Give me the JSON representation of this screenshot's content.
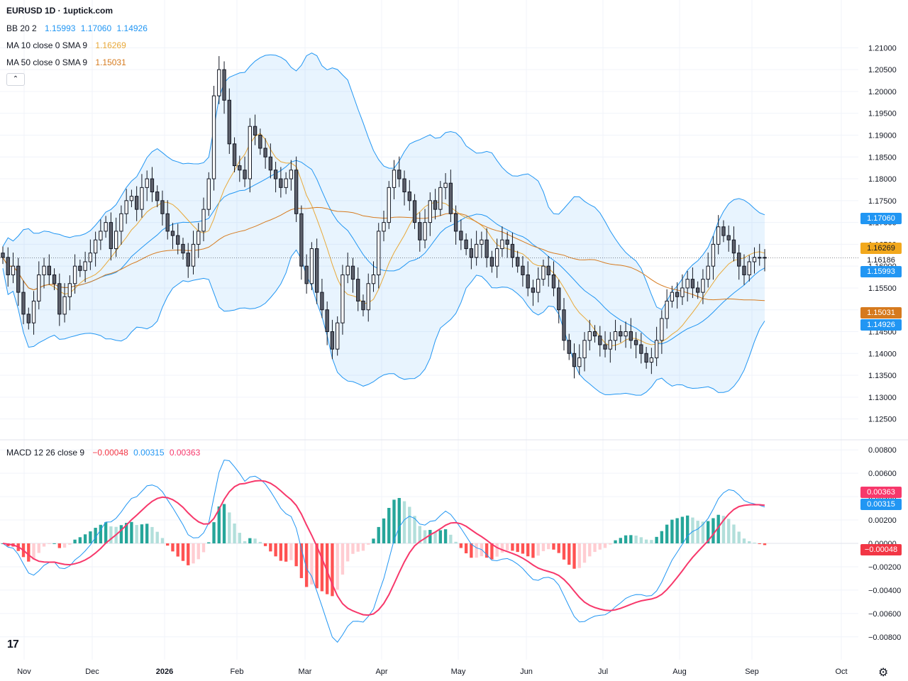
{
  "title": "EURUSD 1D · 1uptick.com",
  "indicators": {
    "bb": {
      "name": "BB 20 2",
      "basis": "1.15993",
      "upper": "1.17060",
      "lower": "1.14926",
      "color": "#2196f3"
    },
    "ma10": {
      "name": "MA 10 close 0 SMA 9",
      "value": "1.16269",
      "color": "#e8a838"
    },
    "ma50": {
      "name": "MA 50 close 0 SMA 9",
      "value": "1.15031",
      "color": "#d67a1e"
    },
    "macd": {
      "name": "MACD 12 26 close 9",
      "hist": "−0.00048",
      "macd": "0.00315",
      "signal": "0.00363",
      "hist_color": "#f23645",
      "macd_color": "#2196f3",
      "signal_color": "#f7386b"
    }
  },
  "price_tags": {
    "bb_upper": "1.17060",
    "ma10": "1.16269",
    "last": "1.16186",
    "bb_basis": "1.15993",
    "ma50": "1.15031",
    "bb_lower": "1.14926",
    "macd_signal": "0.00363",
    "macd_line": "0.00315",
    "macd_hist": "−0.00048"
  },
  "icons": {
    "collapse": "chevron-up-icon",
    "logo": "tradingview-logo-icon",
    "settings": "gear-icon"
  },
  "chart_data": [
    {
      "type": "candlestick",
      "title": "EURUSD 1D",
      "x_tick_labels": [
        "Nov",
        "Dec",
        "2026",
        "Feb",
        "Mar",
        "Apr",
        "May",
        "Jun",
        "Jul",
        "Aug",
        "Sep",
        "Oct"
      ],
      "y_tick_labels": [
        "1.21000",
        "1.20500",
        "1.20000",
        "1.19500",
        "1.19000",
        "1.18500",
        "1.18000",
        "1.17500",
        "1.17000",
        "1.16500",
        "1.16000",
        "1.15500",
        "1.15000",
        "1.14500",
        "1.14000",
        "1.13500",
        "1.13000",
        "1.12500"
      ],
      "ylim": [
        1.1225,
        1.2125
      ],
      "close_path": [
        1.162,
        1.158,
        1.16,
        1.154,
        1.149,
        1.147,
        1.152,
        1.158,
        1.16,
        1.158,
        1.156,
        1.149,
        1.153,
        1.156,
        1.16,
        1.159,
        1.161,
        1.163,
        1.166,
        1.168,
        1.17,
        1.164,
        1.168,
        1.172,
        1.175,
        1.176,
        1.173,
        1.178,
        1.18,
        1.177,
        1.175,
        1.172,
        1.168,
        1.167,
        1.165,
        1.163,
        1.16,
        1.165,
        1.168,
        1.173,
        1.18,
        1.199,
        1.205,
        1.198,
        1.188,
        1.183,
        1.182,
        1.18,
        1.192,
        1.19,
        1.187,
        1.185,
        1.182,
        1.18,
        1.178,
        1.18,
        1.182,
        1.172,
        1.16,
        1.156,
        1.164,
        1.154,
        1.15,
        1.145,
        1.141,
        1.147,
        1.158,
        1.16,
        1.157,
        1.152,
        1.15,
        1.156,
        1.158,
        1.168,
        1.17,
        1.178,
        1.182,
        1.18,
        1.177,
        1.175,
        1.17,
        1.166,
        1.17,
        1.175,
        1.173,
        1.178,
        1.179,
        1.172,
        1.168,
        1.166,
        1.164,
        1.162,
        1.165,
        1.166,
        1.162,
        1.16,
        1.164,
        1.166,
        1.165,
        1.162,
        1.16,
        1.158,
        1.155,
        1.154,
        1.157,
        1.16,
        1.158,
        1.155,
        1.15,
        1.143,
        1.14,
        1.137,
        1.139,
        1.143,
        1.145,
        1.144,
        1.142,
        1.141,
        1.143,
        1.145,
        1.144,
        1.145,
        1.143,
        1.142,
        1.14,
        1.138,
        1.139,
        1.143,
        1.148,
        1.152,
        1.154,
        1.153,
        1.155,
        1.157,
        1.155,
        1.154,
        1.157,
        1.16,
        1.165,
        1.169,
        1.167,
        1.166,
        1.163,
        1.16,
        1.158,
        1.161,
        1.162,
        1.162,
        1.1619
      ],
      "bb": {
        "basis": 1.15993,
        "upper": 1.1706,
        "lower": 1.14926
      },
      "ma10": 1.16269,
      "ma50": 1.15031,
      "last": 1.16186
    },
    {
      "type": "macd",
      "title": "MACD 12 26 close 9",
      "y_tick_labels": [
        "0.00800",
        "0.00600",
        "0.00400",
        "0.00200",
        "0.00000",
        "−0.00200",
        "−0.00400",
        "−0.00600",
        "−0.00800"
      ],
      "ylim": [
        -0.0085,
        0.0085
      ],
      "hist": -0.00048,
      "macd": 0.00315,
      "signal": 0.00363
    }
  ]
}
